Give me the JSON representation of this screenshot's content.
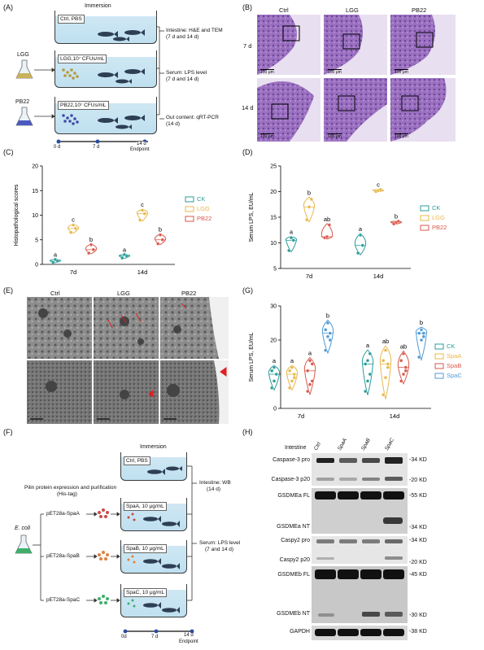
{
  "panels": {
    "A": "(A)",
    "B": "(B)",
    "C": "(C)",
    "D": "(D)",
    "E": "(E)",
    "F": "(F)",
    "G": "(G)",
    "H": "(H)"
  },
  "panelA": {
    "immersion": "Immersion",
    "tanks": [
      "Ctrl, PBS",
      "LGG,10⁷ CFUs/mL",
      "PB22,10⁷ CFUs/mL"
    ],
    "bacteria": [
      "LGG",
      "PB22"
    ],
    "outputs": [
      "Intestine: H&E and TEM",
      "(7 d and 14 d)",
      "Serum: LPS level",
      "(7 d and 14 d)",
      "Gut content: qRT-PCR",
      "(14 d)"
    ],
    "timeline": [
      "0 d",
      "7 d",
      "14 d"
    ],
    "endpoint": "Endpoint"
  },
  "panelB": {
    "cols": [
      "Ctrl",
      "LGG",
      "PB22"
    ],
    "rows": [
      "7 d",
      "14 d"
    ],
    "scale": "100 μm"
  },
  "panelE": {
    "cols": [
      "Ctrl",
      "LGG",
      "PB22"
    ]
  },
  "panelF": {
    "immersion": "Immersion",
    "header1": "Pilin protein expression and purification",
    "header2": "(His-tag)",
    "ecoli": "E. coli",
    "plasmids": [
      "pET28a-SpaA",
      "pET28a-SpaB",
      "pET28a-SpaC"
    ],
    "tanks": [
      "Ctrl, PBS",
      "SpaA, 10 μg/mL",
      "SpaB, 10 μg/mL",
      "SpaC, 10 μg/mL"
    ],
    "outputs": [
      "Intestine: WB",
      "(14 d)",
      "Serum: LPS level",
      "(7 and 14 d)"
    ],
    "timeline": [
      "0d",
      "7 d",
      "14 d"
    ],
    "endpoint": "Endpoint"
  },
  "panelH": {
    "header": "Intestine",
    "lanes": [
      "Ctrl",
      "SpaA",
      "SpaB",
      "SpaC"
    ],
    "bands": [
      "Caspase-3 pro",
      "Caspase-3 p20",
      "GSDMEa FL",
      "GSDMEa NT",
      "Caspy2 pro",
      "Caspy2 p20",
      "GSDMEb FL",
      "GSDMEb NT",
      "GAPDH"
    ],
    "markers": [
      "34 KD",
      "20 KD",
      "55 KD",
      "34 KD",
      "34 KD",
      "20 KD",
      "45 KD",
      "30 KD",
      "38 KD"
    ]
  },
  "colors": {
    "ck": "#2a9d9a",
    "lgg": "#e8b84a",
    "pb22": "#d9594c",
    "spaA": "#e8b84a",
    "spaB": "#d9594c",
    "spaC": "#4f9ad6"
  },
  "chart_data": [
    {
      "id": "C",
      "type": "violin",
      "ylabel": "Histopathological scores",
      "categories": [
        "7d",
        "14d"
      ],
      "ylim": [
        0,
        20
      ],
      "yticks": [
        0,
        5,
        10,
        15,
        20
      ],
      "series": [
        {
          "name": "CK",
          "color": "#2a9d9a",
          "points": [
            [
              0.4,
              1.0,
              0.7
            ],
            [
              1.3,
              2.0,
              1.7
            ]
          ],
          "letters": [
            "a",
            "a"
          ]
        },
        {
          "name": "LGG",
          "color": "#e8b84a",
          "points": [
            [
              6.5,
              8.0,
              7.3
            ],
            [
              9.0,
              11.0,
              10.3
            ]
          ],
          "letters": [
            "c",
            "c"
          ]
        },
        {
          "name": "PB22",
          "color": "#d9594c",
          "points": [
            [
              2.3,
              4.0,
              3.0
            ],
            [
              4.2,
              6.0,
              5.0
            ]
          ],
          "letters": [
            "b",
            "b"
          ]
        }
      ]
    },
    {
      "id": "D",
      "type": "violin",
      "ylabel": "Serum LPS, EU/mL",
      "categories": [
        "7d",
        "14d"
      ],
      "ylim": [
        5,
        25
      ],
      "yticks": [
        5,
        10,
        15,
        20,
        25
      ],
      "series": [
        {
          "name": "CK",
          "color": "#2a9d9a",
          "points": [
            [
              8.5,
              11.0,
              10.5
            ],
            [
              8.0,
              11.5,
              9.5
            ]
          ],
          "letters": [
            "a",
            "a"
          ]
        },
        {
          "name": "LGG",
          "color": "#e8b84a",
          "points": [
            [
              14.5,
              17.0,
              18.5
            ],
            [
              20.0,
              20.2,
              20.4
            ]
          ],
          "letters": [
            "b",
            "c"
          ]
        },
        {
          "name": "PB22",
          "color": "#d9594c",
          "points": [
            [
              11.0,
              11.2,
              13.5
            ],
            [
              13.7,
              14.0,
              14.2
            ]
          ],
          "letters": [
            "ab",
            "b"
          ]
        }
      ]
    },
    {
      "id": "G",
      "type": "violin",
      "ylabel": "Serum LPS, EU/mL",
      "categories": [
        "7d",
        "14d"
      ],
      "ylim": [
        0,
        30
      ],
      "yticks": [
        0,
        10,
        20,
        30
      ],
      "series": [
        {
          "name": "CK",
          "color": "#2a9d9a",
          "points": [
            [
              6,
              8,
              10,
              11,
              12,
              10
            ],
            [
              5,
              8,
              10,
              13,
              14,
              16
            ]
          ],
          "letters": [
            "a",
            "a"
          ]
        },
        {
          "name": "SpaA",
          "color": "#e8b84a",
          "points": [
            [
              6,
              8,
              9,
              11,
              12,
              10
            ],
            [
              4,
              9,
              13,
              14,
              17,
              12
            ]
          ],
          "letters": [
            "a",
            "ab"
          ]
        },
        {
          "name": "SpaB",
          "color": "#d9594c",
          "points": [
            [
              5,
              7,
              8,
              11,
              14,
              13
            ],
            [
              8,
              10,
              11,
              14,
              16,
              12
            ]
          ],
          "letters": [
            "a",
            "ab"
          ]
        },
        {
          "name": "SpaC",
          "color": "#4f9ad6",
          "points": [
            [
              17,
              21,
              22,
              23,
              25,
              20
            ],
            [
              15,
              20,
              21,
              22,
              23,
              22
            ]
          ],
          "letters": [
            "b",
            "b"
          ]
        }
      ]
    }
  ]
}
